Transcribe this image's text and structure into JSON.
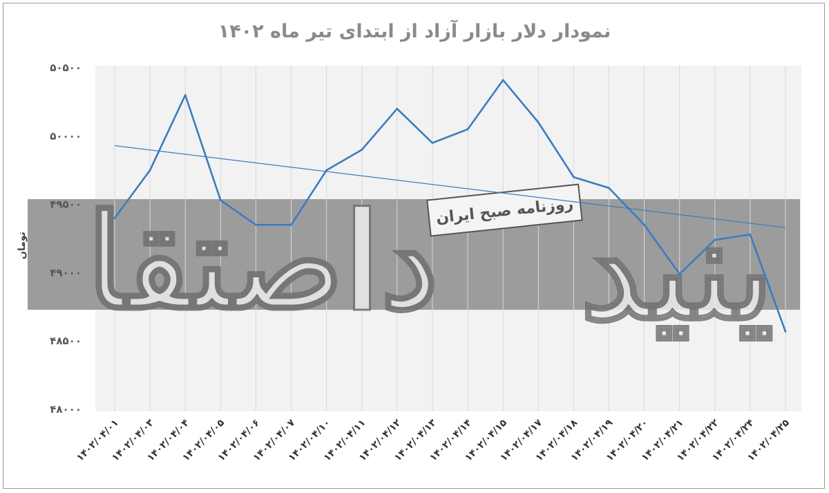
{
  "chart_data": {
    "type": "line",
    "title": "نمودار دلار بازار آزاد از ابتدای تیر ماه ۱۴۰۲",
    "ylabel": "تومان",
    "xlabel": "",
    "ylim": [
      48000,
      50500
    ],
    "y_ticks": [
      "۴۸۰۰۰",
      "۴۸۵۰۰",
      "۴۹۰۰۰",
      "۴۹۵۰۰",
      "۵۰۰۰۰",
      "۵۰۵۰۰"
    ],
    "y_tick_values": [
      48000,
      48500,
      49000,
      49500,
      50000,
      50500
    ],
    "categories": [
      "۱۴۰۲/۰۴/۰۱",
      "۱۴۰۲/۰۴/۰۳",
      "۱۴۰۲/۰۴/۰۴",
      "۱۴۰۲/۰۴/۰۵",
      "۱۴۰۲/۰۴/۰۶",
      "۱۴۰۲/۰۴/۰۷",
      "۱۴۰۲/۰۴/۱۰",
      "۱۴۰۲/۰۴/۱۱",
      "۱۴۰۲/۰۴/۱۲",
      "۱۴۰۲/۰۴/۱۳",
      "۱۴۰۲/۰۴/۱۴",
      "۱۴۰۲/۰۴/۱۵",
      "۱۴۰۲/۰۴/۱۷",
      "۱۴۰۲/۰۴/۱۸",
      "۱۴۰۲/۰۴/۱۹",
      "۱۴۰۲/۰۴/۲۰",
      "۱۴۰۲/۰۴/۲۱",
      "۱۴۰۲/۰۴/۲۲",
      "۱۴۰۲/۰۴/۲۴",
      "۱۴۰۲/۰۴/۲۵"
    ],
    "series": [
      {
        "values": [
          49400,
          49750,
          50300,
          49530,
          49350,
          49350,
          49750,
          49900,
          50200,
          49950,
          50050,
          50410,
          50100,
          49700,
          49620,
          49350,
          48990,
          49240,
          49280,
          48570
        ]
      }
    ],
    "trendline": {
      "start": 49930,
      "end": 49330
    },
    "grid": "vertical",
    "legend": "none"
  },
  "colors": {
    "line": "#3a7cc0",
    "trend": "#3a7cc0",
    "plot_bg": "#f2f2f2",
    "band": "#9c9c9c",
    "grid": "#d8d8d8",
    "watermark_fill": "#ededed",
    "watermark_stroke": "#707070"
  },
  "watermark": {
    "logo_text": "دنیای اقتصاد",
    "stamp_text": "روزنامه صبح ایران"
  }
}
